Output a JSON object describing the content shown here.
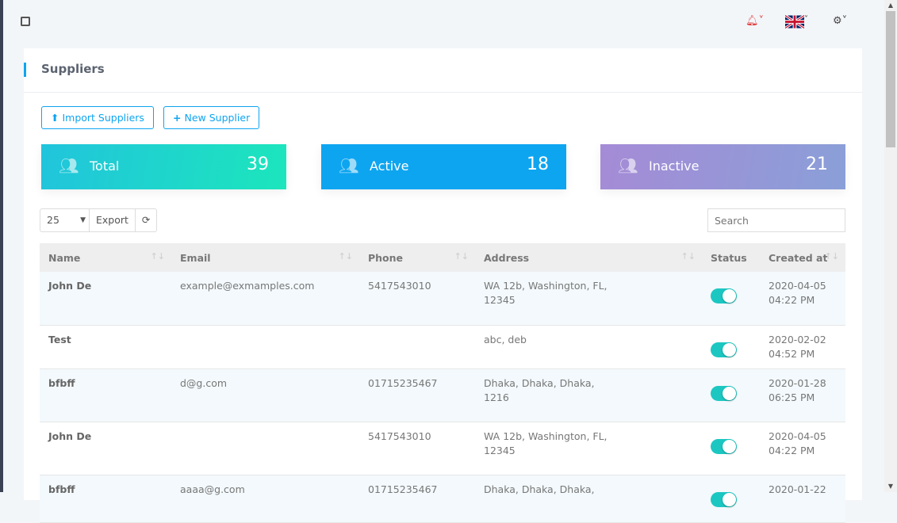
{
  "page": {
    "title": "Suppliers"
  },
  "toolbar": {
    "import_label": "Import Suppliers",
    "new_label": "New Supplier"
  },
  "colors": {
    "accent": "#0ea5f0",
    "total": "#1ce6bc",
    "active": "#0ea5f0",
    "inactive": "#9b8fd6",
    "toggle_on": "#1cc7c2",
    "bell": "#e03c3c"
  },
  "stats": [
    {
      "label": "Total",
      "value": "39"
    },
    {
      "label": "Active",
      "value": "18"
    },
    {
      "label": "Inactive",
      "value": "21"
    }
  ],
  "table_controls": {
    "page_size": "25",
    "export": "Export",
    "search_placeholder": "Search"
  },
  "columns": [
    "Name",
    "Email",
    "Phone",
    "Address",
    "Status",
    "Created at"
  ],
  "rows": [
    {
      "name": "John De",
      "email": "example@exmamples.com",
      "phone": "5417543010",
      "address1": "WA 12b, Washington, FL,",
      "address2": "12345",
      "status": true,
      "date": "2020-04-05",
      "time": "04:22 PM"
    },
    {
      "name": "Test",
      "email": "",
      "phone": "",
      "address1": "abc, deb",
      "address2": "",
      "status": true,
      "date": "2020-02-02",
      "time": "04:52 PM"
    },
    {
      "name": "bfbff",
      "email": "d@g.com",
      "phone": "01715235467",
      "address1": "Dhaka, Dhaka, Dhaka,",
      "address2": "1216",
      "status": true,
      "date": "2020-01-28",
      "time": "06:25 PM"
    },
    {
      "name": "John De",
      "email": "",
      "phone": "5417543010",
      "address1": "WA 12b, Washington, FL,",
      "address2": "12345",
      "status": true,
      "date": "2020-04-05",
      "time": "04:22 PM"
    },
    {
      "name": "bfbff",
      "email": "aaaa@g.com",
      "phone": "01715235467",
      "address1": "Dhaka, Dhaka, Dhaka,",
      "address2": "",
      "status": true,
      "date": "2020-01-22",
      "time": ""
    }
  ]
}
